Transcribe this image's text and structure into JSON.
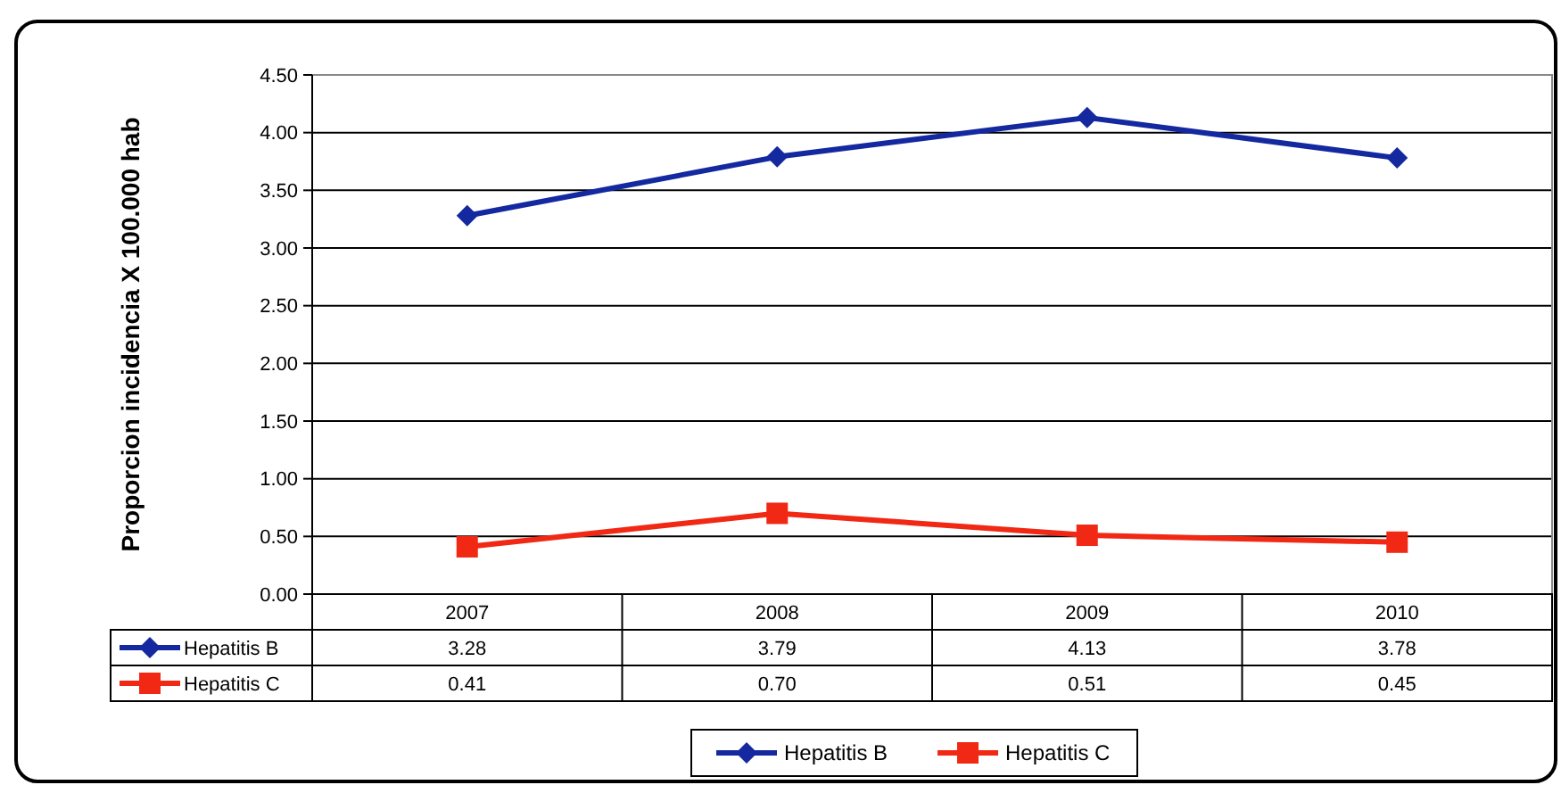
{
  "chart_data": {
    "type": "line",
    "ylabel": "Proporcion incidencia X 100.000 hab",
    "categories": [
      "2007",
      "2008",
      "2009",
      "2010"
    ],
    "series": [
      {
        "name": "Hepatitis B",
        "color": "#1428a0",
        "marker": "diamond",
        "values": [
          3.28,
          3.79,
          4.13,
          3.78
        ],
        "value_labels": [
          "3.28",
          "3.79",
          "4.13",
          "3.78"
        ]
      },
      {
        "name": "Hepatitis C",
        "color": "#f02814",
        "marker": "square",
        "values": [
          0.41,
          0.7,
          0.51,
          0.45
        ],
        "value_labels": [
          "0.41",
          "0.70",
          "0.51",
          "0.45"
        ]
      }
    ],
    "ylim": [
      0,
      4.5
    ],
    "yticks": [
      {
        "value": 0,
        "label": "0.00"
      },
      {
        "value": 0.5,
        "label": "0.50"
      },
      {
        "value": 1,
        "label": "1.00"
      },
      {
        "value": 1.5,
        "label": "1.50"
      },
      {
        "value": 2,
        "label": "2.00"
      },
      {
        "value": 2.5,
        "label": "2.50"
      },
      {
        "value": 3,
        "label": "3.00"
      },
      {
        "value": 3.5,
        "label": "3.50"
      },
      {
        "value": 4,
        "label": "4.00"
      },
      {
        "value": 4.5,
        "label": "4.50"
      }
    ],
    "grid": "y",
    "legend": "bottom",
    "line_style": "solid"
  }
}
